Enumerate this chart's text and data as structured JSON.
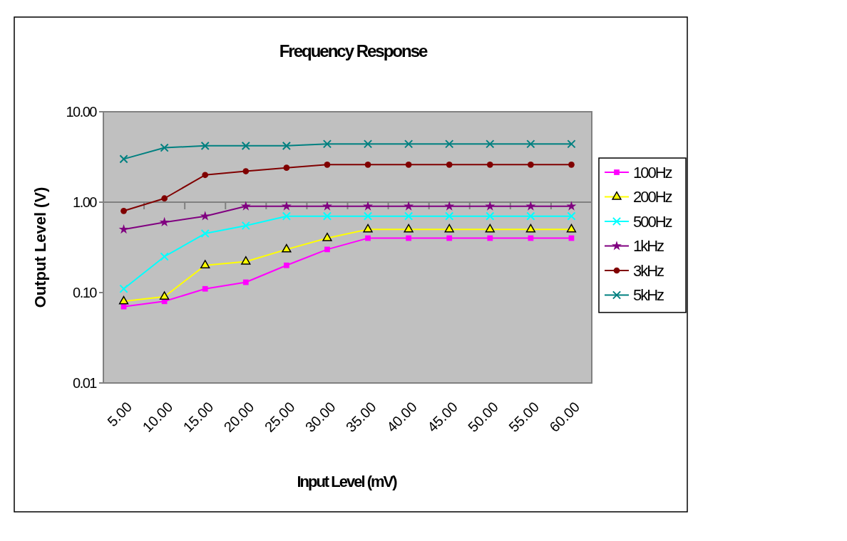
{
  "chart_data": {
    "type": "line",
    "title": "Frequency Response",
    "xlabel": "Input Level (mV)",
    "ylabel": "Output Level (V)",
    "categories": [
      "5.00",
      "10.00",
      "15.00",
      "20.00",
      "25.00",
      "30.00",
      "35.00",
      "40.00",
      "45.00",
      "50.00",
      "55.00",
      "60.00"
    ],
    "series": [
      {
        "name": "100Hz",
        "color": "#ff00ff",
        "marker": "square",
        "values": [
          0.07,
          0.08,
          0.11,
          0.13,
          0.2,
          0.3,
          0.4,
          0.4,
          0.4,
          0.4,
          0.4,
          0.4
        ]
      },
      {
        "name": "200Hz",
        "color": "#ffff00",
        "marker": "triangle",
        "values": [
          0.08,
          0.09,
          0.2,
          0.22,
          0.3,
          0.4,
          0.5,
          0.5,
          0.5,
          0.5,
          0.5,
          0.5
        ]
      },
      {
        "name": "500Hz",
        "color": "#00ffff",
        "marker": "cross",
        "values": [
          0.11,
          0.25,
          0.45,
          0.55,
          0.7,
          0.7,
          0.7,
          0.7,
          0.7,
          0.7,
          0.7,
          0.7
        ]
      },
      {
        "name": "1kHz",
        "color": "#800080",
        "marker": "star",
        "values": [
          0.5,
          0.6,
          0.7,
          0.9,
          0.9,
          0.9,
          0.9,
          0.9,
          0.9,
          0.9,
          0.9,
          0.9
        ]
      },
      {
        "name": "3kHz",
        "color": "#800000",
        "marker": "circle",
        "values": [
          0.8,
          1.1,
          2.0,
          2.2,
          2.4,
          2.6,
          2.6,
          2.6,
          2.6,
          2.6,
          2.6,
          2.6
        ]
      },
      {
        "name": "5kHz",
        "color": "#008080",
        "marker": "cross",
        "values": [
          3.0,
          4.0,
          4.2,
          4.2,
          4.2,
          4.4,
          4.4,
          4.4,
          4.4,
          4.4,
          4.4,
          4.4
        ]
      }
    ],
    "log": true,
    "ylim": [
      0.01,
      10
    ],
    "yticks": [
      {
        "value": 10,
        "label": "10.00"
      },
      {
        "value": 1,
        "label": "1.00"
      },
      {
        "value": 0.1,
        "label": "0.10"
      },
      {
        "value": 0.01,
        "label": "0.01"
      }
    ],
    "legend": "right"
  }
}
